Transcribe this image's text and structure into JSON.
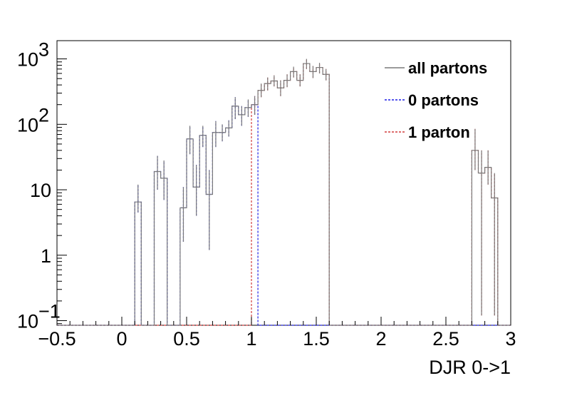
{
  "chart_data": {
    "type": "histogram",
    "title": "",
    "xlabel": "DJR 0->1",
    "ylabel": "",
    "xlim": [
      -0.5,
      3.0
    ],
    "ylim": [
      0.085,
      1900
    ],
    "yscale": "log",
    "bin_width": 0.05,
    "grid": false,
    "legend_position": "top-right",
    "x_ticks": [
      {
        "value": -0.5,
        "label": "−0.5"
      },
      {
        "value": 0,
        "label": "0"
      },
      {
        "value": 0.5,
        "label": "0.5"
      },
      {
        "value": 1,
        "label": "1"
      },
      {
        "value": 1.5,
        "label": "1.5"
      },
      {
        "value": 2,
        "label": "2"
      },
      {
        "value": 2.5,
        "label": "2.5"
      },
      {
        "value": 3,
        "label": "3"
      }
    ],
    "y_ticks": [
      {
        "value": 0.1,
        "base": "10",
        "exp": "−1"
      },
      {
        "value": 1,
        "base": "1",
        "exp": ""
      },
      {
        "value": 10,
        "base": "10",
        "exp": ""
      },
      {
        "value": 100,
        "base": "10",
        "exp": "2"
      },
      {
        "value": 1000,
        "base": "10",
        "exp": "3"
      }
    ],
    "series": [
      {
        "name": "0 partons",
        "color": "#1f1fe6",
        "style": "dotted",
        "bins": [
          [
            0.1,
            6.5,
            4.5,
            12
          ],
          [
            0.15,
            0,
            0,
            0
          ],
          [
            0.2,
            0,
            0,
            0
          ],
          [
            0.25,
            19,
            10,
            33
          ],
          [
            0.3,
            15,
            7,
            28
          ],
          [
            0.35,
            0,
            0,
            0
          ],
          [
            0.4,
            0,
            0,
            0
          ],
          [
            0.45,
            5.3,
            1.6,
            11
          ],
          [
            0.5,
            60,
            35,
            95
          ],
          [
            0.55,
            11,
            4,
            24
          ],
          [
            0.6,
            68,
            45,
            95
          ],
          [
            0.65,
            8.5,
            1.2,
            20
          ],
          [
            0.7,
            75,
            45,
            112
          ],
          [
            0.75,
            75,
            55,
            100
          ],
          [
            0.8,
            88,
            65,
            115
          ],
          [
            0.85,
            190,
            120,
            260
          ],
          [
            0.9,
            140,
            95,
            190
          ],
          [
            0.95,
            180,
            130,
            240
          ],
          [
            1.0,
            200,
            140,
            270
          ],
          [
            1.05,
            0,
            0,
            0
          ],
          [
            1.1,
            0,
            0,
            0
          ]
        ]
      },
      {
        "name": "1 parton",
        "color": "#d23c3c",
        "style": "dotted",
        "bins": [
          [
            1.0,
            200,
            140,
            270
          ],
          [
            1.05,
            330,
            260,
            420
          ],
          [
            1.1,
            420,
            330,
            520
          ],
          [
            1.15,
            460,
            380,
            560
          ],
          [
            1.2,
            360,
            270,
            470
          ],
          [
            1.25,
            470,
            370,
            580
          ],
          [
            1.3,
            640,
            520,
            760
          ],
          [
            1.35,
            470,
            380,
            580
          ],
          [
            1.4,
            850,
            700,
            1000
          ],
          [
            1.45,
            640,
            510,
            780
          ],
          [
            1.5,
            740,
            600,
            870
          ],
          [
            1.55,
            580,
            470,
            700
          ],
          [
            1.6,
            0,
            0,
            0
          ],
          [
            2.7,
            40,
            20,
            85
          ],
          [
            2.75,
            18,
            0.12,
            40
          ],
          [
            2.8,
            22,
            12,
            40
          ],
          [
            2.85,
            7.5,
            0.12,
            18
          ]
        ]
      },
      {
        "name": "all partons",
        "color": "#7a7a7a",
        "style": "solid",
        "bins": [
          [
            0.1,
            6.5,
            4.5,
            12
          ],
          [
            0.15,
            0,
            0,
            0
          ],
          [
            0.2,
            0,
            0,
            0
          ],
          [
            0.25,
            19,
            10,
            33
          ],
          [
            0.3,
            15,
            7,
            28
          ],
          [
            0.35,
            0,
            0,
            0
          ],
          [
            0.4,
            0,
            0,
            0
          ],
          [
            0.45,
            5.3,
            1.6,
            11
          ],
          [
            0.5,
            60,
            35,
            95
          ],
          [
            0.55,
            11,
            4,
            24
          ],
          [
            0.6,
            68,
            45,
            95
          ],
          [
            0.65,
            8.5,
            1.2,
            20
          ],
          [
            0.7,
            75,
            45,
            112
          ],
          [
            0.75,
            75,
            55,
            100
          ],
          [
            0.8,
            88,
            65,
            115
          ],
          [
            0.85,
            190,
            120,
            260
          ],
          [
            0.9,
            140,
            95,
            190
          ],
          [
            0.95,
            180,
            130,
            240
          ],
          [
            1.0,
            200,
            140,
            270
          ],
          [
            1.05,
            330,
            260,
            420
          ],
          [
            1.1,
            420,
            330,
            520
          ],
          [
            1.15,
            460,
            380,
            560
          ],
          [
            1.2,
            360,
            270,
            470
          ],
          [
            1.25,
            470,
            370,
            580
          ],
          [
            1.3,
            640,
            520,
            760
          ],
          [
            1.35,
            470,
            380,
            580
          ],
          [
            1.4,
            850,
            700,
            1000
          ],
          [
            1.45,
            640,
            510,
            780
          ],
          [
            1.5,
            740,
            600,
            870
          ],
          [
            1.55,
            580,
            470,
            700
          ],
          [
            1.6,
            0,
            0,
            0
          ],
          [
            2.7,
            40,
            20,
            85
          ],
          [
            2.75,
            18,
            0.12,
            40
          ],
          [
            2.8,
            22,
            12,
            40
          ],
          [
            2.85,
            7.5,
            0.12,
            18
          ]
        ]
      }
    ],
    "legend": [
      {
        "label": "all partons",
        "color": "#7a7a7a",
        "style": "solid"
      },
      {
        "label": "0 partons",
        "color": "#1f1fe6",
        "style": "dotted"
      },
      {
        "label": "1 parton",
        "color": "#d23c3c",
        "style": "dotted"
      }
    ]
  }
}
